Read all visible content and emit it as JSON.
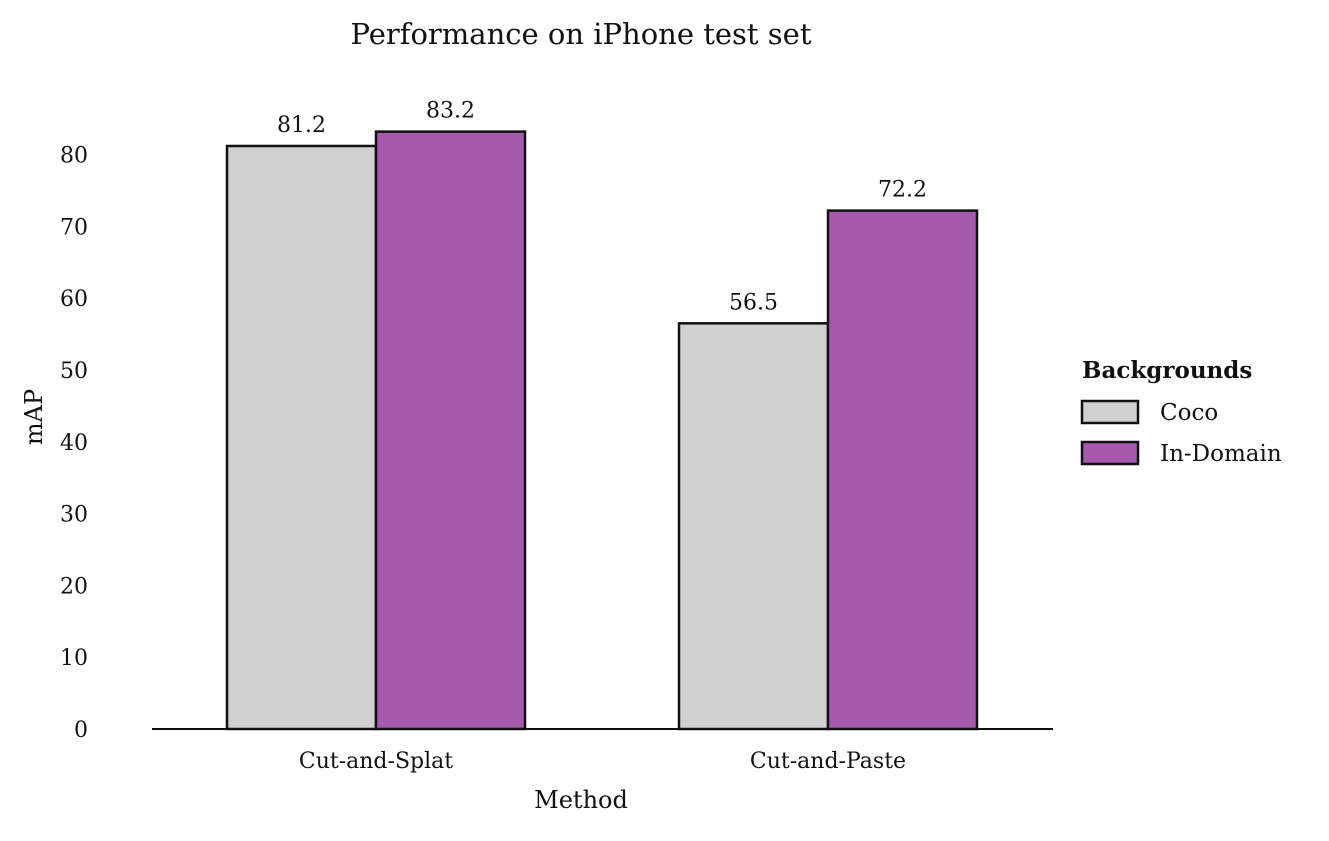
{
  "chart_data": {
    "type": "bar",
    "title": "Performance on iPhone test set",
    "xlabel": "Method",
    "ylabel": "mAP",
    "categories": [
      "Cut-and-Splat",
      "Cut-and-Paste"
    ],
    "series": [
      {
        "name": "Coco",
        "values": [
          81.2,
          56.5
        ],
        "color": "#d0d0d0"
      },
      {
        "name": "In-Domain",
        "values": [
          83.2,
          72.2
        ],
        "color": "#a55aab"
      }
    ],
    "data_labels": [
      [
        "81.2",
        "56.5"
      ],
      [
        "83.2",
        "72.2"
      ]
    ],
    "ylim": [
      0,
      90
    ],
    "yticks": [
      0,
      10,
      20,
      30,
      40,
      50,
      60,
      70,
      80
    ],
    "legend": {
      "title": "Backgrounds",
      "placement": "right"
    },
    "grid": false,
    "bar_edge_color": "#111111"
  }
}
